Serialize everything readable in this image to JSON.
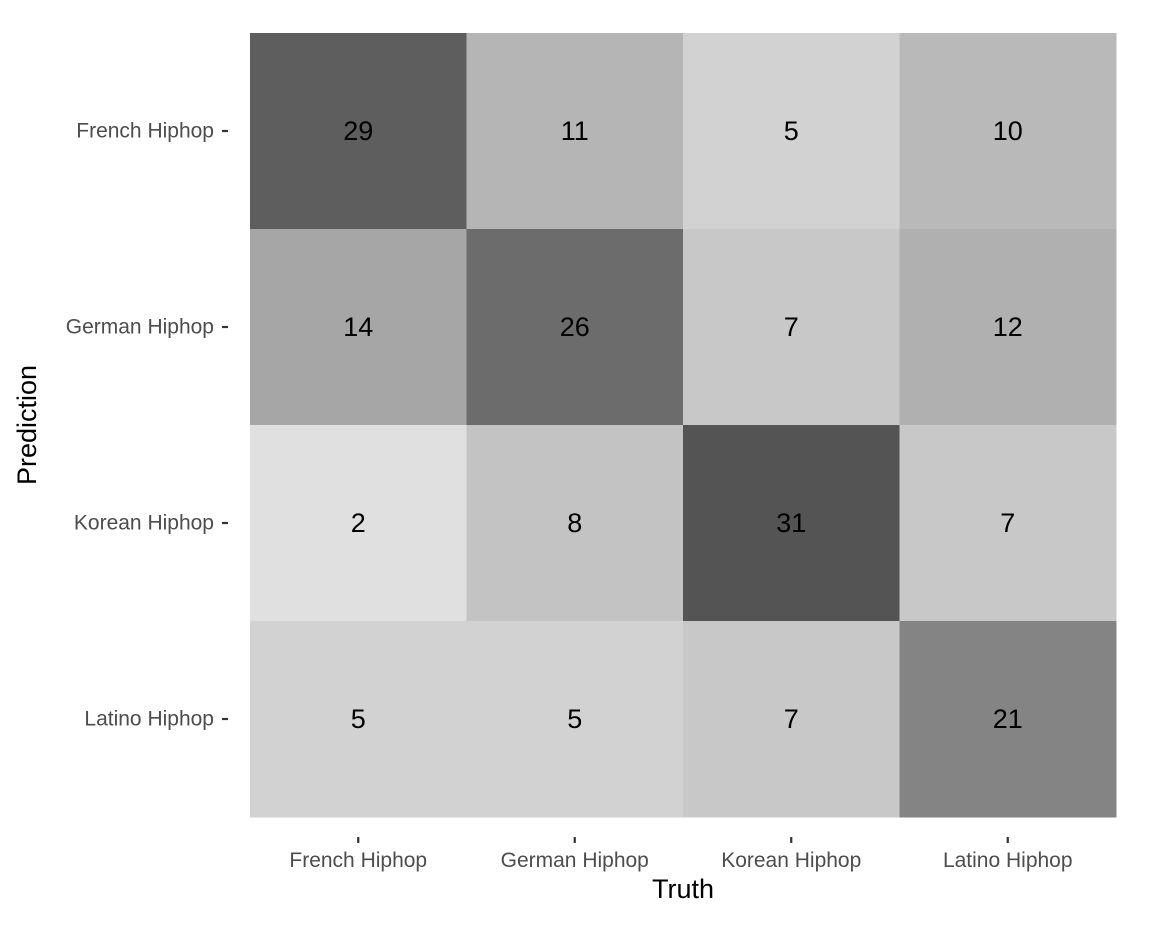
{
  "chart_data": {
    "type": "heatmap",
    "xlabel": "Truth",
    "ylabel": "Prediction",
    "x_categories": [
      "French Hiphop",
      "German Hiphop",
      "Korean Hiphop",
      "Latino Hiphop"
    ],
    "y_categories": [
      "French Hiphop",
      "German Hiphop",
      "Korean Hiphop",
      "Latino Hiphop"
    ],
    "values": [
      [
        29,
        11,
        5,
        10
      ],
      [
        14,
        26,
        7,
        12
      ],
      [
        2,
        8,
        31,
        7
      ],
      [
        5,
        5,
        7,
        21
      ]
    ],
    "color_scale": {
      "low": "#e0e0e0",
      "high": "#545454",
      "min": 2,
      "max": 31
    },
    "legend": "none",
    "grid": false
  }
}
